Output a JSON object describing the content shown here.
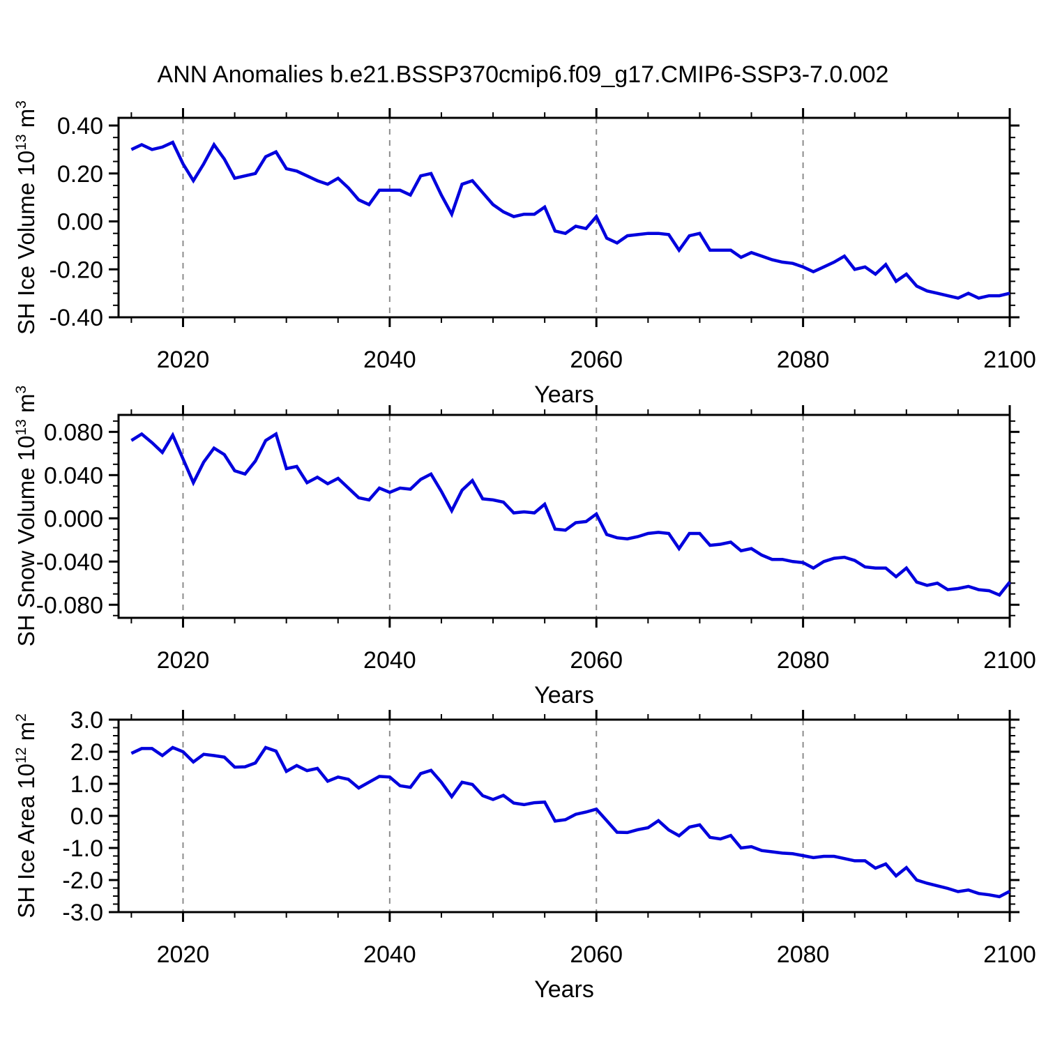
{
  "title": "ANN Anomalies b.e21.BSSP370cmip6.f09_g17.CMIP6-SSP3-7.0.002",
  "style": {
    "line_color": "#0000dd",
    "grid_color": "#8c8c8c",
    "axis_color": "#000000",
    "background": "#ffffff"
  },
  "x_axis": {
    "label": "Years",
    "ticks": [
      2020,
      2040,
      2060,
      2080,
      2100
    ],
    "minor_step": 5,
    "grid_years": [
      2020,
      2040,
      2060,
      2080
    ],
    "xlim": [
      2013.76,
      2100
    ]
  },
  "years": [
    2015,
    2016,
    2017,
    2018,
    2019,
    2020,
    2021,
    2022,
    2023,
    2024,
    2025,
    2026,
    2027,
    2028,
    2029,
    2030,
    2031,
    2032,
    2033,
    2034,
    2035,
    2036,
    2037,
    2038,
    2039,
    2040,
    2041,
    2042,
    2043,
    2044,
    2045,
    2046,
    2047,
    2048,
    2049,
    2050,
    2051,
    2052,
    2053,
    2054,
    2055,
    2056,
    2057,
    2058,
    2059,
    2060,
    2061,
    2062,
    2063,
    2064,
    2065,
    2066,
    2067,
    2068,
    2069,
    2070,
    2071,
    2072,
    2073,
    2074,
    2075,
    2076,
    2077,
    2078,
    2079,
    2080,
    2081,
    2082,
    2083,
    2084,
    2085,
    2086,
    2087,
    2088,
    2089,
    2090,
    2091,
    2092,
    2093,
    2094,
    2095,
    2096,
    2097,
    2098,
    2099,
    2100
  ],
  "chart_data": [
    {
      "id": "sh-ice-volume",
      "type": "line",
      "ylabel_text": "SH Ice Volume 10^13 m^3",
      "ylabel_pre": "SH Ice Volume 10",
      "ylabel_sup1": "13",
      "ylabel_mid": " m",
      "ylabel_sup2": "3",
      "ylim": [
        -0.4,
        0.432
      ],
      "yticks": [
        0.4,
        0.2,
        0.0,
        -0.2,
        -0.4
      ],
      "ytick_labels": [
        "0.40",
        "0.20",
        "0.00",
        "-0.20",
        "-0.40"
      ],
      "y_minor_step": 0.05,
      "values": [
        0.3,
        0.32,
        0.3,
        0.31,
        0.33,
        0.24,
        0.17,
        0.24,
        0.32,
        0.26,
        0.18,
        0.19,
        0.2,
        0.27,
        0.29,
        0.22,
        0.21,
        0.19,
        0.17,
        0.155,
        0.18,
        0.14,
        0.09,
        0.07,
        0.13,
        0.13,
        0.13,
        0.11,
        0.19,
        0.2,
        0.11,
        0.03,
        0.155,
        0.17,
        0.12,
        0.07,
        0.04,
        0.02,
        0.03,
        0.03,
        0.06,
        -0.04,
        -0.05,
        -0.02,
        -0.03,
        0.02,
        -0.07,
        -0.09,
        -0.06,
        -0.055,
        -0.05,
        -0.05,
        -0.055,
        -0.12,
        -0.06,
        -0.05,
        -0.12,
        -0.12,
        -0.12,
        -0.15,
        -0.13,
        -0.145,
        -0.16,
        -0.17,
        -0.175,
        -0.19,
        -0.21,
        -0.19,
        -0.17,
        -0.145,
        -0.2,
        -0.19,
        -0.22,
        -0.18,
        -0.25,
        -0.22,
        -0.27,
        -0.29,
        -0.3,
        -0.31,
        -0.32,
        -0.3,
        -0.32,
        -0.31,
        -0.31,
        -0.3
      ]
    },
    {
      "id": "sh-snow-volume",
      "type": "line",
      "ylabel_text": "SH Snow Volume 10^13 m^3",
      "ylabel_pre": "SH Snow Volume 10",
      "ylabel_sup1": "13",
      "ylabel_mid": " m",
      "ylabel_sup2": "3",
      "ylim": [
        -0.0921,
        0.0957
      ],
      "yticks": [
        0.08,
        0.04,
        0.0,
        -0.04,
        -0.08
      ],
      "ytick_labels": [
        "0.080",
        "0.040",
        "0.000",
        "-0.040",
        "-0.080"
      ],
      "y_minor_step": 0.01,
      "values": [
        0.072,
        0.078,
        0.07,
        0.061,
        0.077,
        0.055,
        0.033,
        0.052,
        0.065,
        0.059,
        0.044,
        0.041,
        0.053,
        0.072,
        0.078,
        0.046,
        0.048,
        0.033,
        0.038,
        0.032,
        0.037,
        0.028,
        0.019,
        0.017,
        0.028,
        0.024,
        0.028,
        0.027,
        0.036,
        0.041,
        0.025,
        0.007,
        0.026,
        0.035,
        0.018,
        0.017,
        0.015,
        0.005,
        0.006,
        0.005,
        0.013,
        -0.01,
        -0.011,
        -0.004,
        -0.003,
        0.004,
        -0.015,
        -0.018,
        -0.019,
        -0.017,
        -0.014,
        -0.013,
        -0.014,
        -0.028,
        -0.014,
        -0.014,
        -0.025,
        -0.024,
        -0.022,
        -0.03,
        -0.028,
        -0.034,
        -0.038,
        -0.038,
        -0.04,
        -0.041,
        -0.046,
        -0.04,
        -0.037,
        -0.036,
        -0.039,
        -0.045,
        -0.046,
        -0.046,
        -0.054,
        -0.046,
        -0.059,
        -0.062,
        -0.06,
        -0.066,
        -0.065,
        -0.063,
        -0.066,
        -0.067,
        -0.071,
        -0.059
      ]
    },
    {
      "id": "sh-ice-area",
      "type": "line",
      "ylabel_text": "SH Ice Area 10^12 m^2",
      "ylabel_pre": "SH Ice Area 10",
      "ylabel_sup1": "12",
      "ylabel_mid": " m",
      "ylabel_sup2": "2",
      "ylim": [
        -3.0,
        3.0
      ],
      "yticks": [
        3.0,
        2.0,
        1.0,
        0.0,
        -1.0,
        -2.0,
        -3.0
      ],
      "ytick_labels": [
        "3.0",
        "2.0",
        "1.0",
        "0.0",
        "-1.0",
        "-2.0",
        "-3.0"
      ],
      "y_minor_step": 0.25,
      "values": [
        1.95,
        2.1,
        2.1,
        1.88,
        2.13,
        2.0,
        1.68,
        1.92,
        1.88,
        1.83,
        1.52,
        1.53,
        1.65,
        2.13,
        2.02,
        1.39,
        1.57,
        1.41,
        1.48,
        1.08,
        1.21,
        1.14,
        0.87,
        1.05,
        1.23,
        1.21,
        0.94,
        0.89,
        1.32,
        1.42,
        1.05,
        0.6,
        1.05,
        0.98,
        0.63,
        0.51,
        0.64,
        0.4,
        0.35,
        0.41,
        0.43,
        -0.16,
        -0.12,
        0.05,
        0.12,
        0.21,
        -0.15,
        -0.51,
        -0.52,
        -0.43,
        -0.37,
        -0.15,
        -0.44,
        -0.62,
        -0.35,
        -0.28,
        -0.67,
        -0.72,
        -0.61,
        -1.0,
        -0.96,
        -1.08,
        -1.12,
        -1.16,
        -1.18,
        -1.24,
        -1.3,
        -1.26,
        -1.26,
        -1.33,
        -1.4,
        -1.4,
        -1.63,
        -1.5,
        -1.87,
        -1.61,
        -2.0,
        -2.1,
        -2.18,
        -2.26,
        -2.36,
        -2.31,
        -2.42,
        -2.46,
        -2.52,
        -2.35
      ]
    }
  ]
}
